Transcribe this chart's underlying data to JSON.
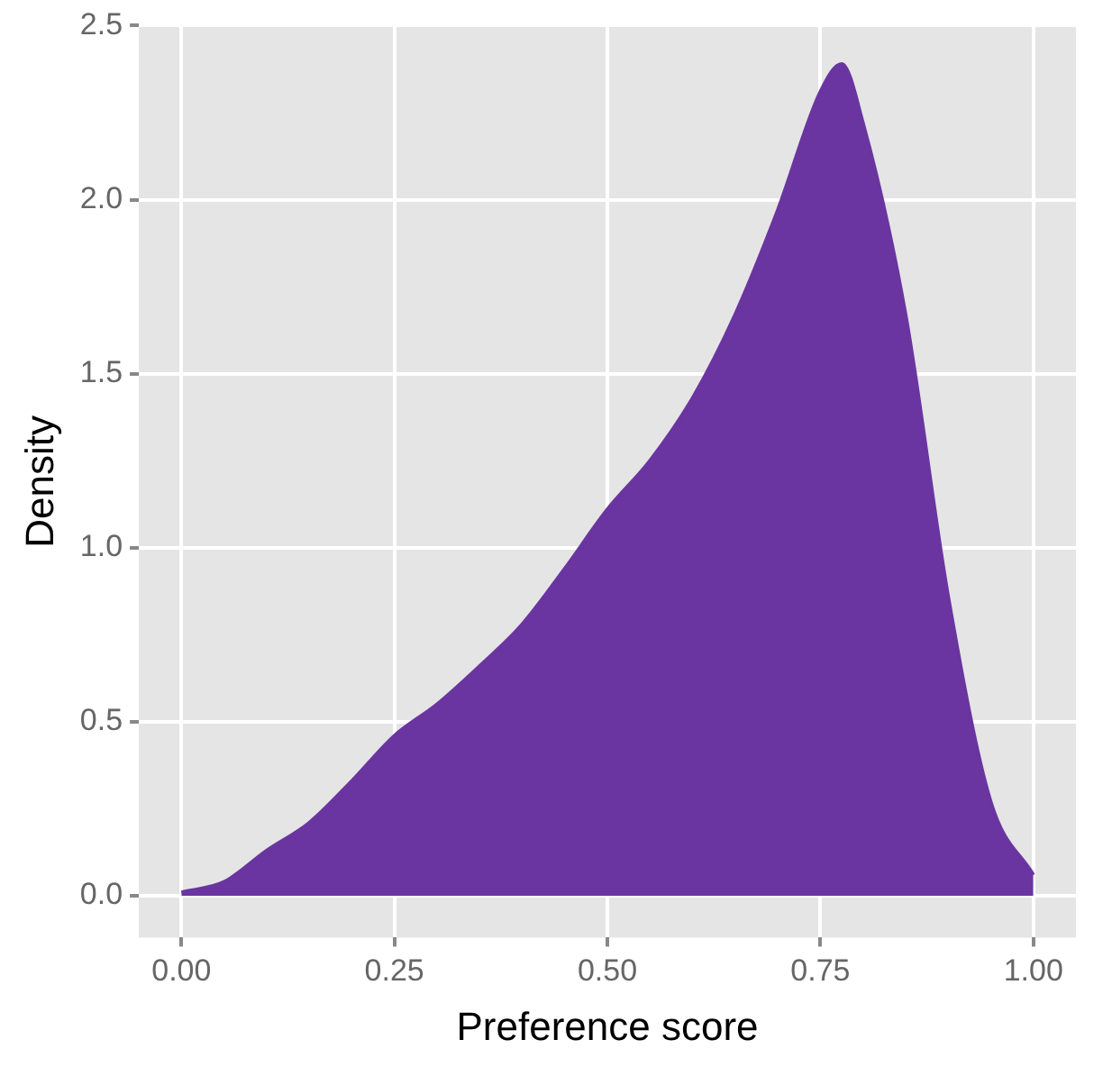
{
  "chart_data": {
    "type": "area",
    "xlabel": "Preference score",
    "ylabel": "Density",
    "x": [
      0,
      0.05,
      0.1,
      0.15,
      0.2,
      0.25,
      0.3,
      0.35,
      0.4,
      0.45,
      0.5,
      0.55,
      0.6,
      0.65,
      0.7,
      0.75,
      0.775,
      0.8,
      0.85,
      0.9,
      0.95,
      1
    ],
    "series": [
      {
        "color": "#6a35a0",
        "values": [
          0.01,
          0.04,
          0.13,
          0.21,
          0.33,
          0.46,
          0.55,
          0.66,
          0.78,
          0.94,
          1.11,
          1.25,
          1.43,
          1.67,
          1.97,
          2.31,
          2.39,
          2.22,
          1.67,
          0.86,
          0.27,
          0.06
        ]
      }
    ],
    "xlim": [
      -0.05,
      1.05
    ],
    "xticks": [
      {
        "value": 0,
        "label": "0.00"
      },
      {
        "value": 0.25,
        "label": "0.25"
      },
      {
        "value": 0.5,
        "label": "0.50"
      },
      {
        "value": 0.75,
        "label": "0.75"
      },
      {
        "value": 1,
        "label": "1.00"
      }
    ],
    "ylim": [
      -0.12,
      2.5
    ],
    "yticks": [
      {
        "value": 0,
        "label": "0.0"
      },
      {
        "value": 0.5,
        "label": "0.5"
      },
      {
        "value": 1,
        "label": "1.0"
      },
      {
        "value": 1.5,
        "label": "1.5"
      },
      {
        "value": 2,
        "label": "2.0"
      },
      {
        "value": 2.5,
        "label": "2.5"
      }
    ],
    "grid": true,
    "legend": false
  }
}
